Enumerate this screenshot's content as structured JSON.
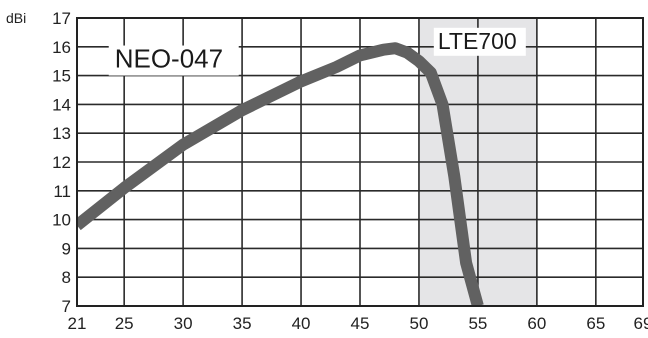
{
  "chart_data": {
    "type": "line",
    "title": "",
    "xlabel": "",
    "ylabel": "dBi",
    "xlim": [
      21,
      69
    ],
    "ylim": [
      7,
      17
    ],
    "x_ticks": [
      21,
      25,
      30,
      35,
      40,
      45,
      50,
      55,
      60,
      65,
      69
    ],
    "y_ticks": [
      7,
      8,
      9,
      10,
      11,
      12,
      13,
      14,
      15,
      16,
      17
    ],
    "grid": true,
    "legend": "none",
    "highlight_band": {
      "label": "LTE700",
      "x_range": [
        50,
        60
      ],
      "color": "#e5e5e7"
    },
    "series": [
      {
        "name": "NEO-047",
        "color": "#616161",
        "x": [
          21,
          25,
          30,
          35,
          40,
          43,
          45,
          47,
          48,
          49,
          50,
          51,
          52,
          53,
          54,
          55
        ],
        "y": [
          9.8,
          11.1,
          12.6,
          13.8,
          14.8,
          15.3,
          15.7,
          15.9,
          15.95,
          15.8,
          15.5,
          15.1,
          14.0,
          11.5,
          8.5,
          7.0
        ]
      }
    ]
  }
}
